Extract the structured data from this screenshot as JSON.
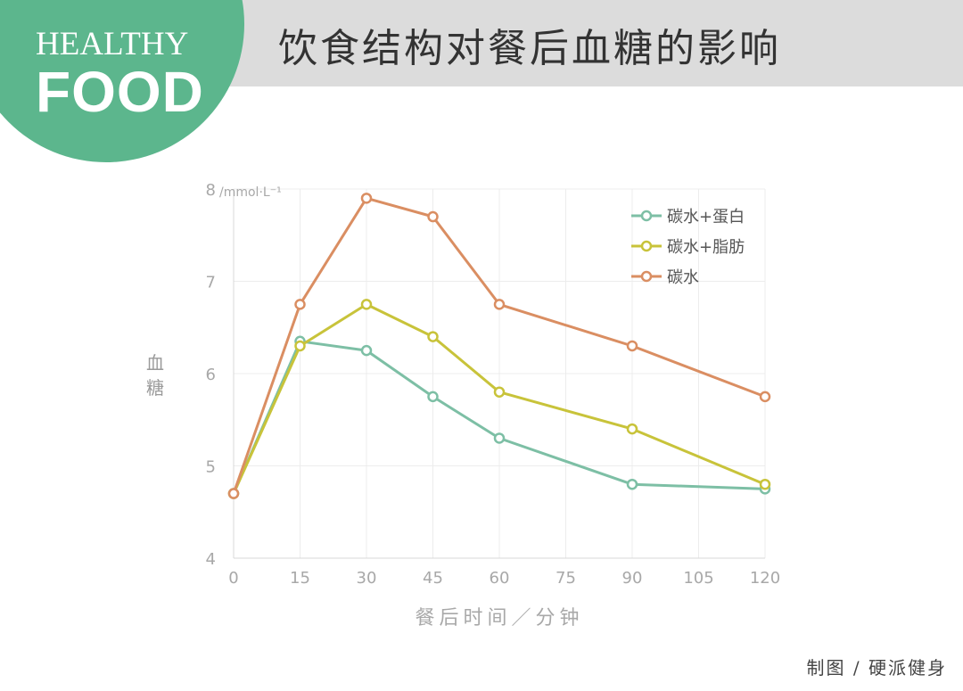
{
  "header": {
    "title": "饮食结构对餐后血糖的影响",
    "logo_line1": "HEALTHY",
    "logo_line2": "FOOD"
  },
  "footer": {
    "credit": "制图 / 硬派健身"
  },
  "colors": {
    "logo_green": "#5cb68d",
    "header_band": "#dcdcdc",
    "grid": "#ececec"
  },
  "chart_data": {
    "type": "line",
    "title": "",
    "xlabel": "餐后时间／分钟",
    "ylabel": "血糖",
    "y_unit": "/mmol·L⁻¹",
    "xlim": [
      0,
      120
    ],
    "ylim": [
      4,
      8
    ],
    "x_ticks": [
      0,
      15,
      30,
      45,
      60,
      75,
      90,
      105,
      120
    ],
    "y_ticks": [
      4,
      5,
      6,
      7,
      8
    ],
    "grid": true,
    "legend_position": "top-right",
    "x": [
      0,
      15,
      30,
      45,
      60,
      90,
      120
    ],
    "series": [
      {
        "name": "碳水+蛋白",
        "color": "#7dbfa5",
        "values": [
          4.7,
          6.35,
          6.25,
          5.75,
          5.3,
          4.8,
          4.75
        ]
      },
      {
        "name": "碳水+脂肪",
        "color": "#c8c33a",
        "values": [
          4.7,
          6.3,
          6.75,
          6.4,
          5.8,
          5.4,
          4.8
        ]
      },
      {
        "name": "碳水",
        "color": "#da8e62",
        "values": [
          4.7,
          6.75,
          7.9,
          7.7,
          6.75,
          6.3,
          5.75
        ]
      }
    ]
  }
}
